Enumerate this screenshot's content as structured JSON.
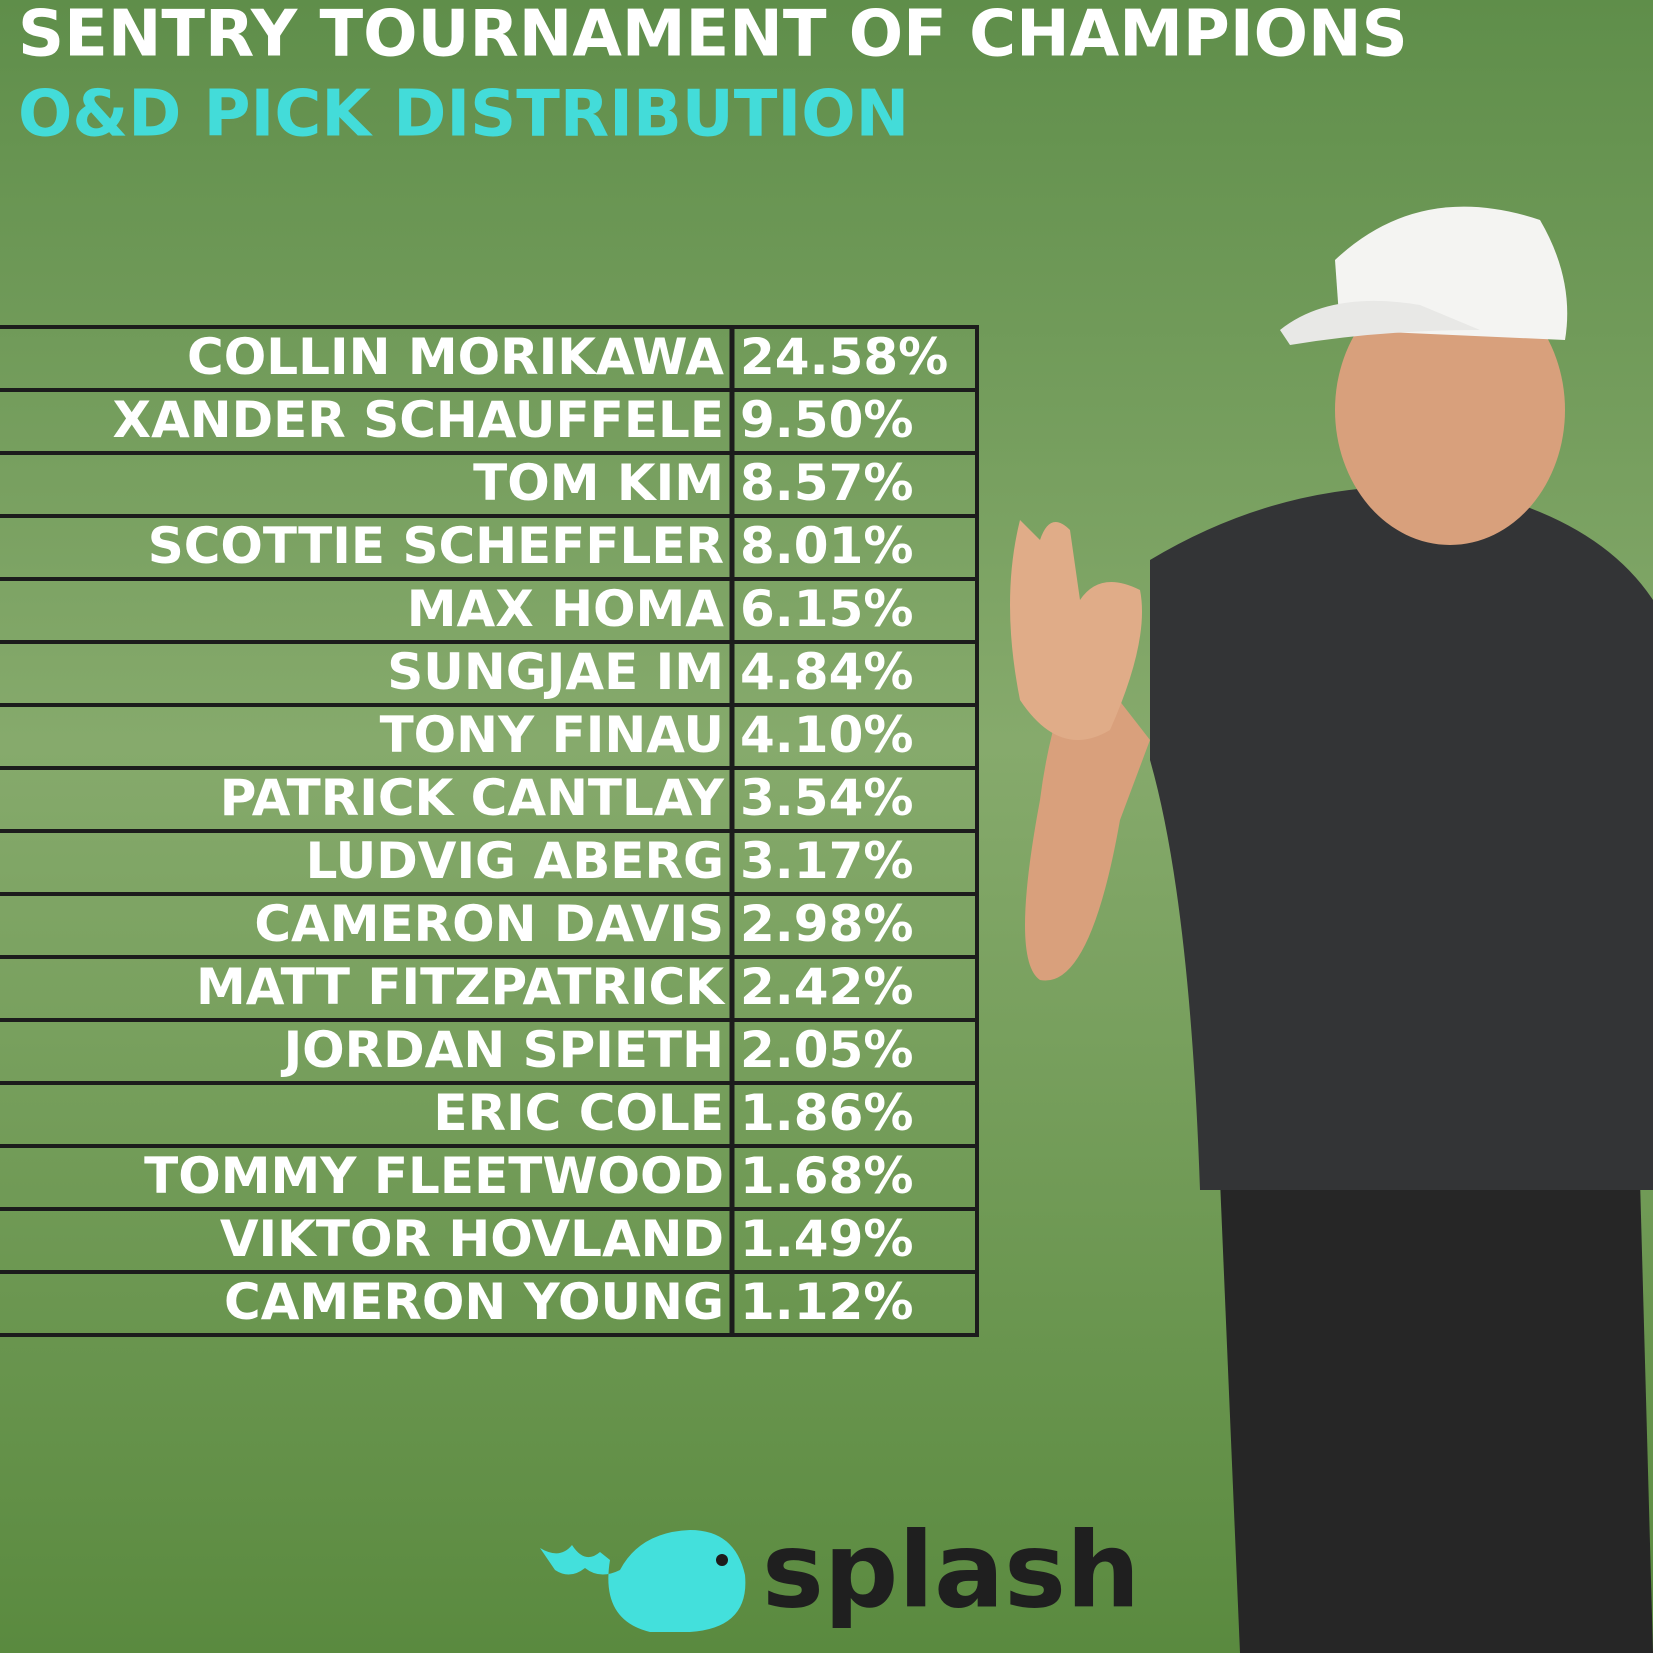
{
  "header": {
    "title": "SENTRY TOURNAMENT OF CHAMPIONS",
    "subtitle": "O&D PICK DISTRIBUTION"
  },
  "table": {
    "rows": [
      [
        "COLLIN MORIKAWA",
        "24.58%"
      ],
      [
        "XANDER SCHAUFFELE",
        "9.50%"
      ],
      [
        "TOM KIM",
        "8.57%"
      ],
      [
        "SCOTTIE SCHEFFLER",
        "8.01%"
      ],
      [
        "MAX HOMA",
        "6.15%"
      ],
      [
        "SUNGJAE IM",
        "4.84%"
      ],
      [
        "TONY FINAU",
        "4.10%"
      ],
      [
        "PATRICK CANTLAY",
        "3.54%"
      ],
      [
        "LUDVIG ABERG",
        "3.17%"
      ],
      [
        "CAMERON DAVIS",
        "2.98%"
      ],
      [
        "MATT FITZPATRICK",
        "2.42%"
      ],
      [
        "JORDAN SPIETH",
        "2.05%"
      ],
      [
        "ERIC COLE",
        "1.86%"
      ],
      [
        "TOMMY FLEETWOOD",
        "1.68%"
      ],
      [
        "VIKTOR HOVLAND",
        "1.49%"
      ],
      [
        "CAMERON YOUNG",
        "1.12%"
      ]
    ]
  },
  "logo": {
    "text": "splash"
  }
}
